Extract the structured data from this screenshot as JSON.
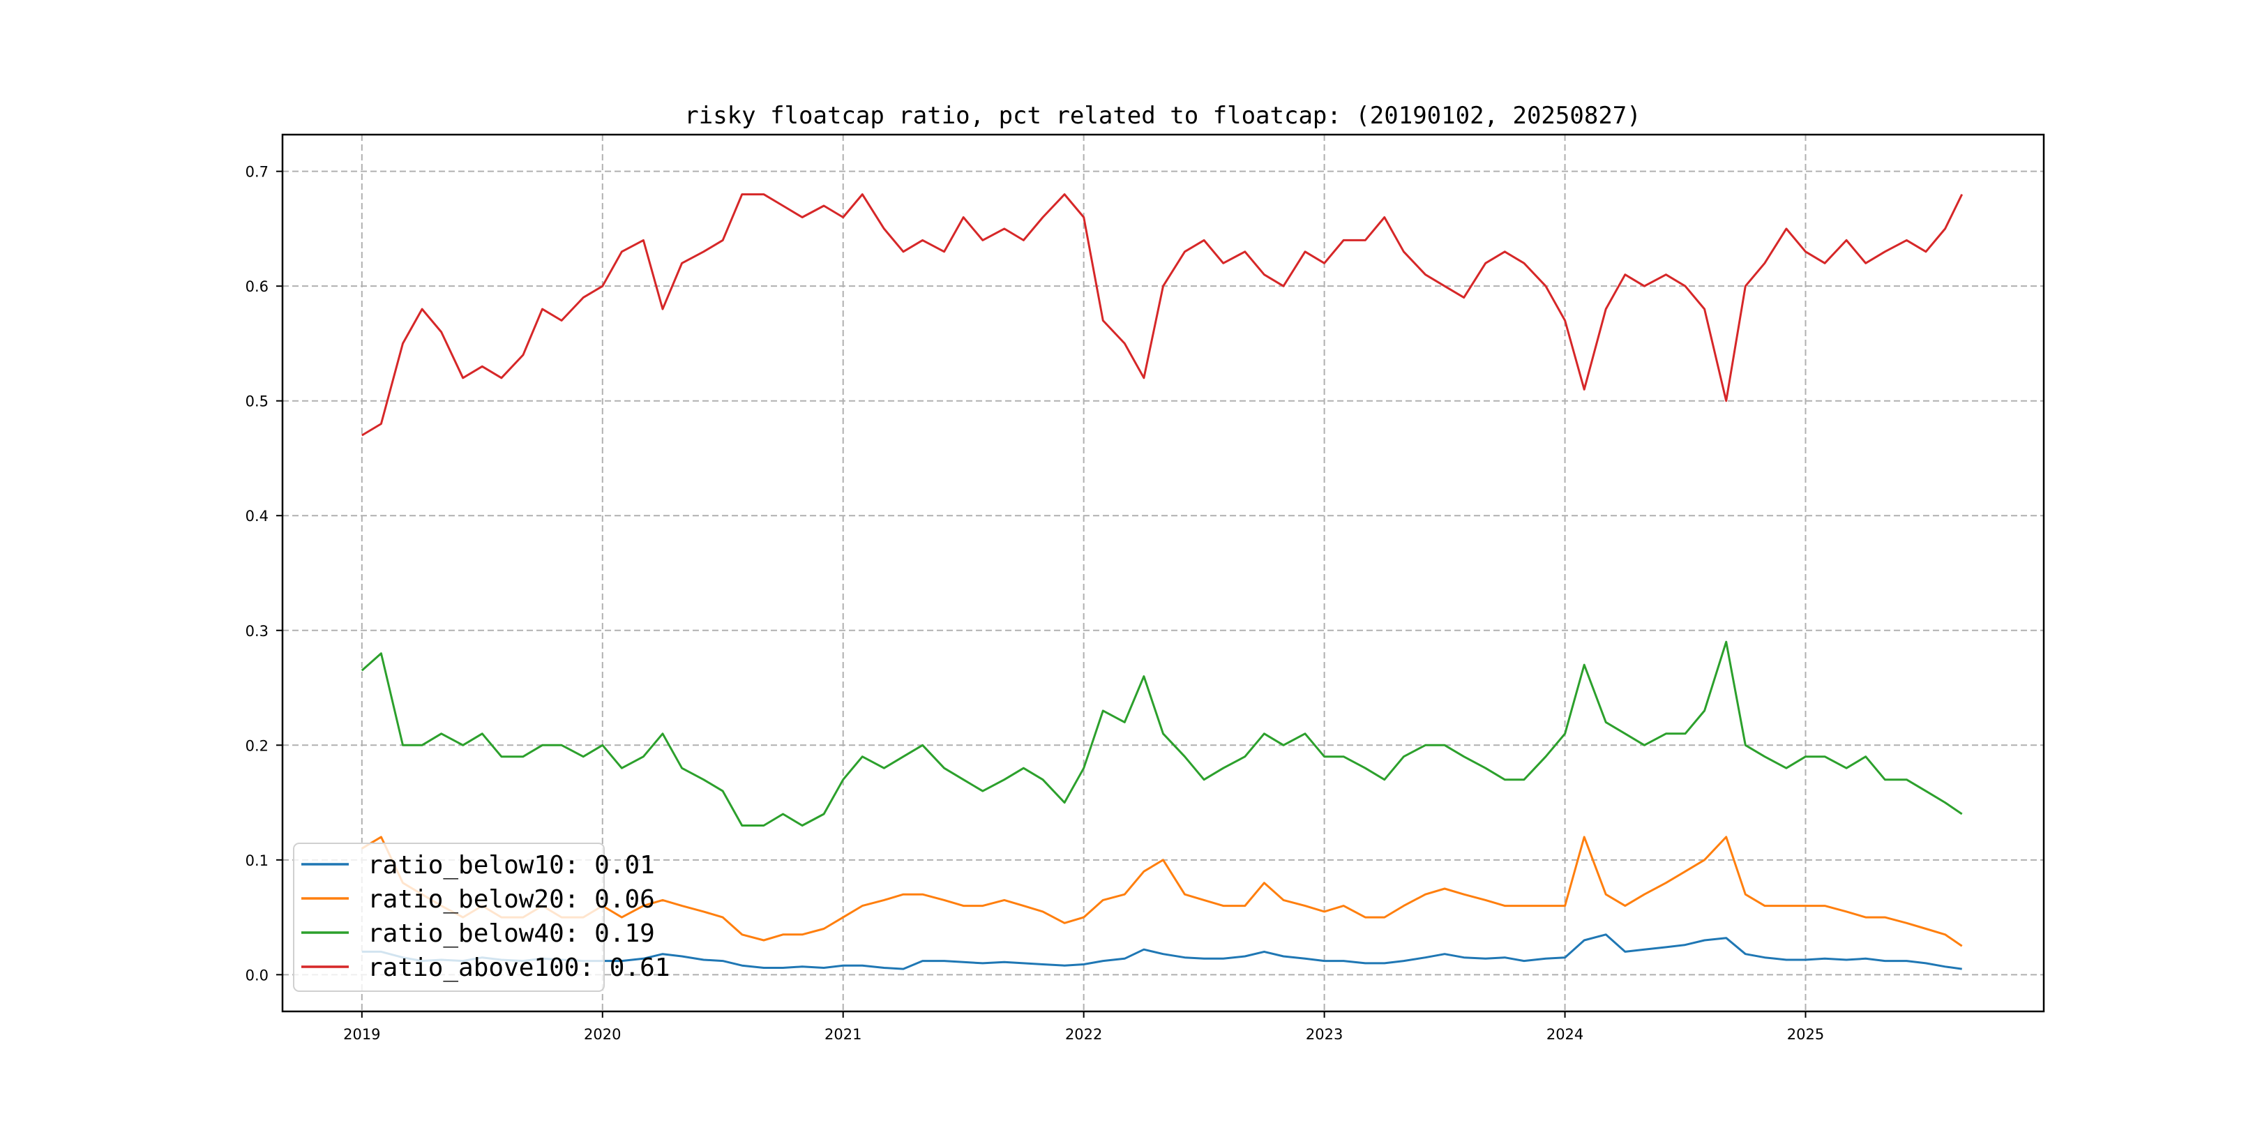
{
  "chart_data": {
    "type": "line",
    "title": "risky floatcap ratio, pct related to floatcap: (20190102, 20250827)",
    "xlabel": "",
    "ylabel": "",
    "xlim": [
      2018.67,
      2025.99
    ],
    "ylim": [
      -0.032,
      0.732
    ],
    "grid": true,
    "legend_position": "lower-left",
    "x_ticks": [
      2019,
      2020,
      2021,
      2022,
      2023,
      2024,
      2025
    ],
    "x_tick_labels": [
      "2019",
      "2020",
      "2021",
      "2022",
      "2023",
      "2024",
      "2025"
    ],
    "y_ticks": [
      0.0,
      0.1,
      0.2,
      0.3,
      0.4,
      0.5,
      0.6,
      0.7
    ],
    "y_tick_labels": [
      "0.0",
      "0.1",
      "0.2",
      "0.3",
      "0.4",
      "0.5",
      "0.6",
      "0.7"
    ],
    "x": [
      2019.0,
      2019.08,
      2019.17,
      2019.25,
      2019.33,
      2019.42,
      2019.5,
      2019.58,
      2019.67,
      2019.75,
      2019.83,
      2019.92,
      2020.0,
      2020.08,
      2020.17,
      2020.25,
      2020.33,
      2020.42,
      2020.5,
      2020.58,
      2020.67,
      2020.75,
      2020.83,
      2020.92,
      2021.0,
      2021.08,
      2021.17,
      2021.25,
      2021.33,
      2021.42,
      2021.5,
      2021.58,
      2021.67,
      2021.75,
      2021.83,
      2021.92,
      2022.0,
      2022.08,
      2022.17,
      2022.25,
      2022.33,
      2022.42,
      2022.5,
      2022.58,
      2022.67,
      2022.75,
      2022.83,
      2022.92,
      2023.0,
      2023.08,
      2023.17,
      2023.25,
      2023.33,
      2023.42,
      2023.5,
      2023.58,
      2023.67,
      2023.75,
      2023.83,
      2023.92,
      2024.0,
      2024.08,
      2024.17,
      2024.25,
      2024.33,
      2024.42,
      2024.5,
      2024.58,
      2024.67,
      2024.75,
      2024.83,
      2024.92,
      2025.0,
      2025.08,
      2025.17,
      2025.25,
      2025.33,
      2025.42,
      2025.5,
      2025.58,
      2025.65
    ],
    "series": [
      {
        "name": "ratio_below10",
        "legend": "ratio_below10: 0.01",
        "color": "#1f77b4",
        "values": [
          0.02,
          0.02,
          0.015,
          0.012,
          0.013,
          0.012,
          0.015,
          0.013,
          0.012,
          0.014,
          0.013,
          0.012,
          0.012,
          0.012,
          0.014,
          0.018,
          0.016,
          0.013,
          0.012,
          0.008,
          0.006,
          0.006,
          0.007,
          0.006,
          0.008,
          0.008,
          0.006,
          0.005,
          0.012,
          0.012,
          0.011,
          0.01,
          0.011,
          0.01,
          0.009,
          0.008,
          0.009,
          0.012,
          0.014,
          0.022,
          0.018,
          0.015,
          0.014,
          0.014,
          0.016,
          0.02,
          0.016,
          0.014,
          0.012,
          0.012,
          0.01,
          0.01,
          0.012,
          0.015,
          0.018,
          0.015,
          0.014,
          0.015,
          0.012,
          0.014,
          0.015,
          0.03,
          0.035,
          0.02,
          0.022,
          0.024,
          0.026,
          0.03,
          0.032,
          0.018,
          0.015,
          0.013,
          0.013,
          0.014,
          0.013,
          0.014,
          0.012,
          0.012,
          0.01,
          0.007,
          0.005
        ]
      },
      {
        "name": "ratio_below20",
        "legend": "ratio_below20: 0.06",
        "color": "#ff7f0e",
        "values": [
          0.11,
          0.12,
          0.08,
          0.07,
          0.06,
          0.05,
          0.06,
          0.05,
          0.05,
          0.06,
          0.05,
          0.05,
          0.06,
          0.05,
          0.06,
          0.065,
          0.06,
          0.055,
          0.05,
          0.035,
          0.03,
          0.035,
          0.035,
          0.04,
          0.05,
          0.06,
          0.065,
          0.07,
          0.07,
          0.065,
          0.06,
          0.06,
          0.065,
          0.06,
          0.055,
          0.045,
          0.05,
          0.065,
          0.07,
          0.09,
          0.1,
          0.07,
          0.065,
          0.06,
          0.06,
          0.08,
          0.065,
          0.06,
          0.055,
          0.06,
          0.05,
          0.05,
          0.06,
          0.07,
          0.075,
          0.07,
          0.065,
          0.06,
          0.06,
          0.06,
          0.06,
          0.12,
          0.07,
          0.06,
          0.07,
          0.08,
          0.09,
          0.1,
          0.12,
          0.07,
          0.06,
          0.06,
          0.06,
          0.06,
          0.055,
          0.05,
          0.05,
          0.045,
          0.04,
          0.035,
          0.025
        ]
      },
      {
        "name": "ratio_below40",
        "legend": "ratio_below40: 0.19",
        "color": "#2ca02c",
        "values": [
          0.265,
          0.28,
          0.2,
          0.2,
          0.21,
          0.2,
          0.21,
          0.19,
          0.19,
          0.2,
          0.2,
          0.19,
          0.2,
          0.18,
          0.19,
          0.21,
          0.18,
          0.17,
          0.16,
          0.13,
          0.13,
          0.14,
          0.13,
          0.14,
          0.17,
          0.19,
          0.18,
          0.19,
          0.2,
          0.18,
          0.17,
          0.16,
          0.17,
          0.18,
          0.17,
          0.15,
          0.18,
          0.23,
          0.22,
          0.26,
          0.21,
          0.19,
          0.17,
          0.18,
          0.19,
          0.21,
          0.2,
          0.21,
          0.19,
          0.19,
          0.18,
          0.17,
          0.19,
          0.2,
          0.2,
          0.19,
          0.18,
          0.17,
          0.17,
          0.19,
          0.21,
          0.27,
          0.22,
          0.21,
          0.2,
          0.21,
          0.21,
          0.23,
          0.29,
          0.2,
          0.19,
          0.18,
          0.19,
          0.19,
          0.18,
          0.19,
          0.17,
          0.17,
          0.16,
          0.15,
          0.14
        ]
      },
      {
        "name": "ratio_above100",
        "legend": "ratio_above100: 0.61",
        "color": "#d62728",
        "values": [
          0.47,
          0.48,
          0.55,
          0.58,
          0.56,
          0.52,
          0.53,
          0.52,
          0.54,
          0.58,
          0.57,
          0.59,
          0.6,
          0.63,
          0.64,
          0.58,
          0.62,
          0.63,
          0.64,
          0.68,
          0.68,
          0.67,
          0.66,
          0.67,
          0.66,
          0.68,
          0.65,
          0.63,
          0.64,
          0.63,
          0.66,
          0.64,
          0.65,
          0.64,
          0.66,
          0.68,
          0.66,
          0.57,
          0.55,
          0.52,
          0.6,
          0.63,
          0.64,
          0.62,
          0.63,
          0.61,
          0.6,
          0.63,
          0.62,
          0.64,
          0.64,
          0.66,
          0.63,
          0.61,
          0.6,
          0.59,
          0.62,
          0.63,
          0.62,
          0.6,
          0.57,
          0.51,
          0.58,
          0.61,
          0.6,
          0.61,
          0.6,
          0.58,
          0.5,
          0.6,
          0.62,
          0.65,
          0.63,
          0.62,
          0.64,
          0.62,
          0.63,
          0.64,
          0.63,
          0.65,
          0.68
        ]
      }
    ]
  }
}
